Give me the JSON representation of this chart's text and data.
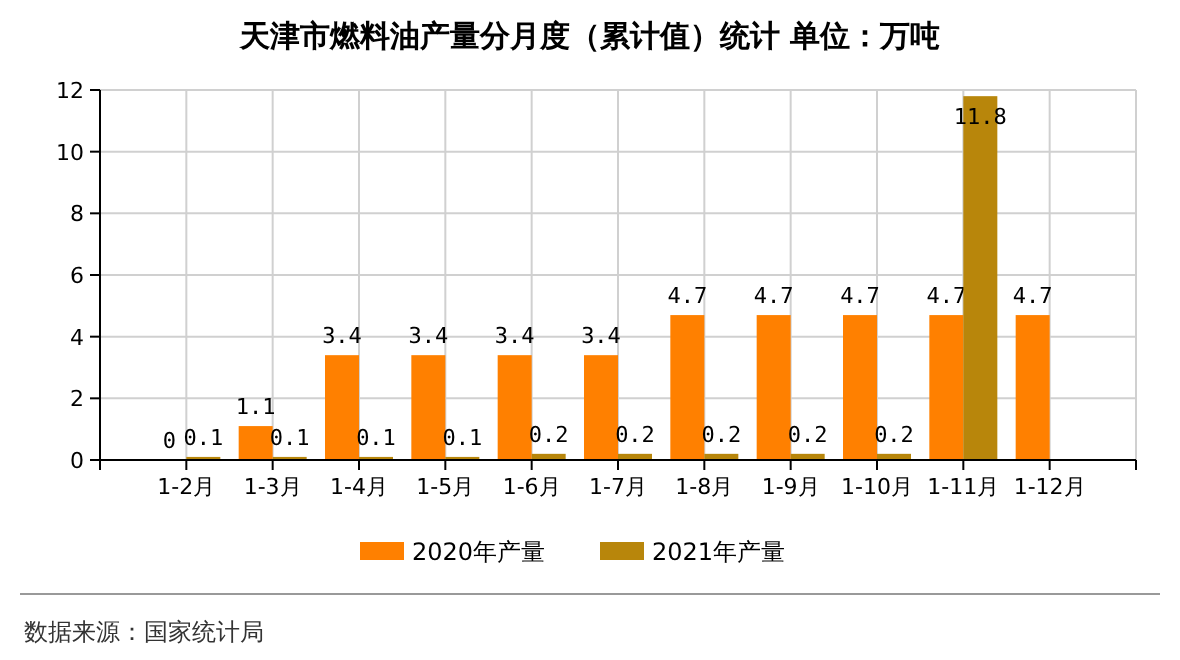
{
  "chart_data": {
    "type": "bar",
    "title": "天津市燃料油产量分月度（累计值）统计 单位：万吨",
    "categories": [
      "1-2月",
      "1-3月",
      "1-4月",
      "1-5月",
      "1-6月",
      "1-7月",
      "1-8月",
      "1-9月",
      "1-10月",
      "1-11月",
      "1-12月"
    ],
    "series": [
      {
        "name": "2020年产量",
        "color": "#ff8000",
        "values": [
          0,
          1.1,
          3.4,
          3.4,
          3.4,
          3.4,
          4.7,
          4.7,
          4.7,
          4.7,
          4.7
        ]
      },
      {
        "name": "2021年产量",
        "color": "#b8860b",
        "values": [
          0.1,
          0.1,
          0.1,
          0.1,
          0.2,
          0.2,
          0.2,
          0.2,
          0.2,
          11.8,
          null
        ]
      }
    ],
    "ylim": [
      0,
      12
    ],
    "yticks": [
      0,
      2,
      4,
      6,
      8,
      10,
      12
    ],
    "grid": true,
    "legend": "bottom",
    "data_labels": true,
    "annotations": [
      "数据来源：国家统计局"
    ]
  }
}
